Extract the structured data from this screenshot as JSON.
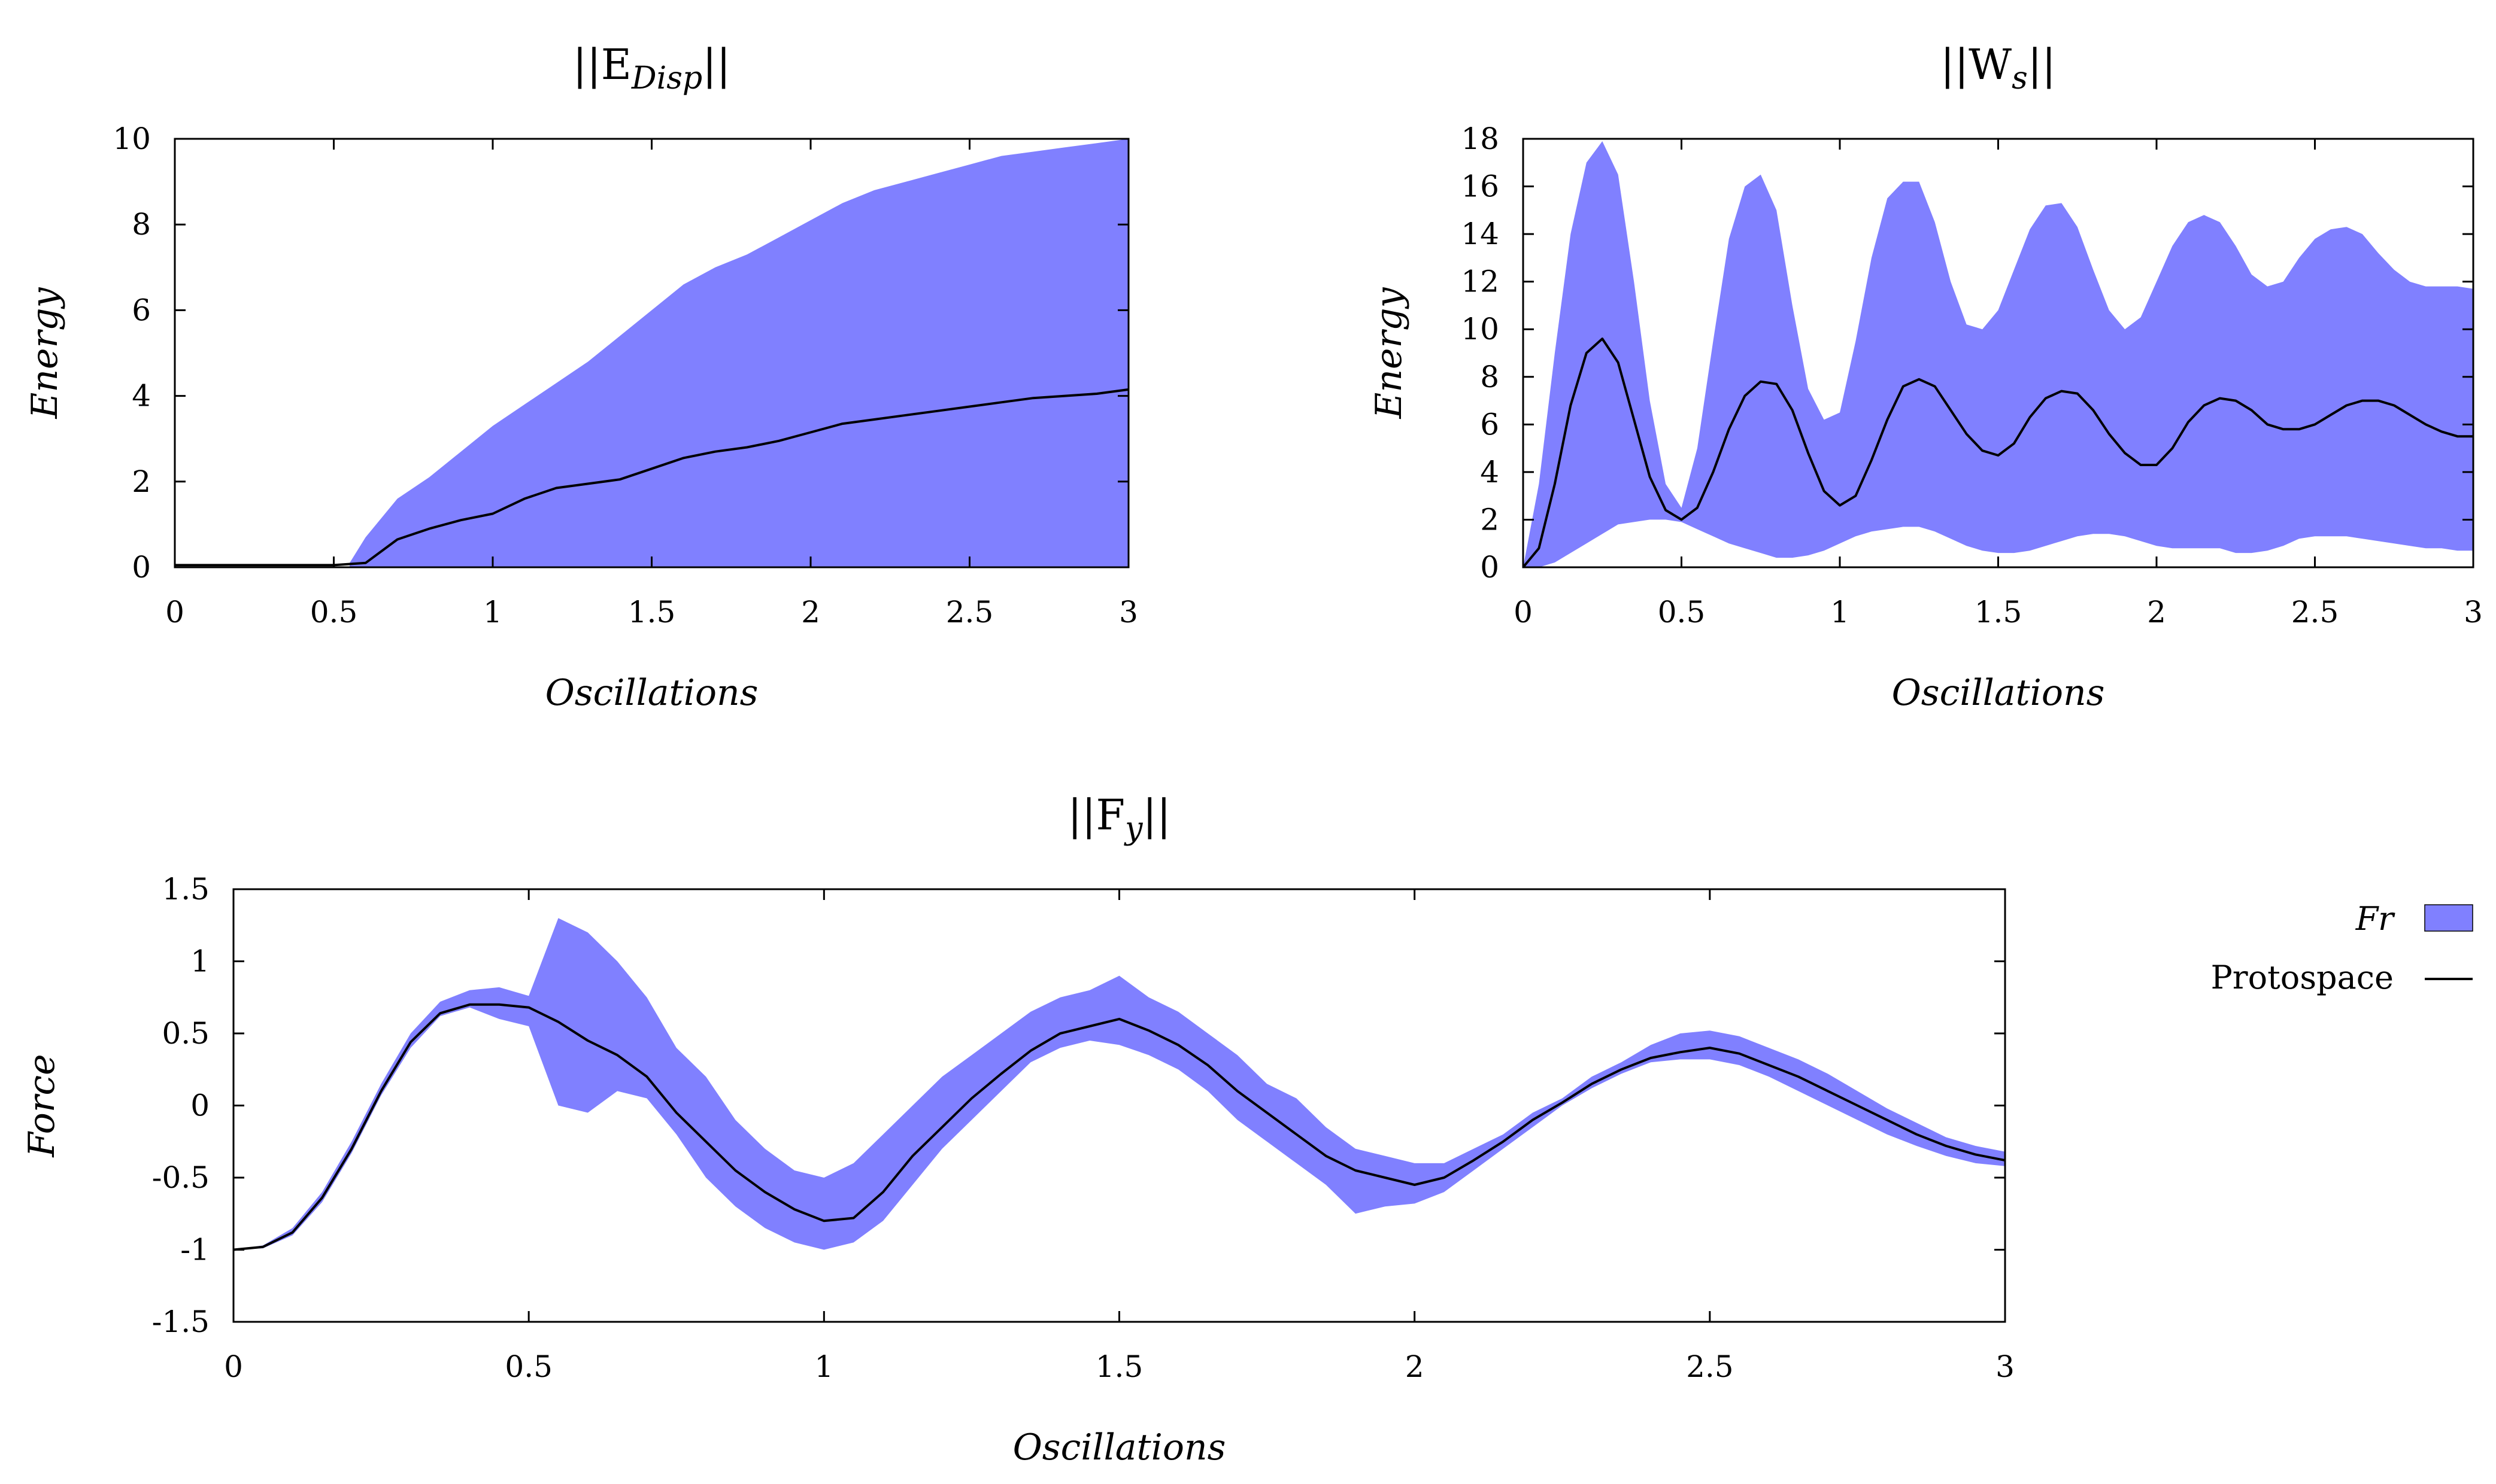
{
  "chart_data": [
    {
      "type": "area",
      "title": {
        "prefix": "||E",
        "sub": "Disp",
        "suffix": "||"
      },
      "xlabel": "Oscillations",
      "ylabel": "Energy",
      "xlim": [
        0,
        3
      ],
      "ylim": [
        0,
        10
      ],
      "xticks": [
        0,
        0.5,
        1,
        1.5,
        2,
        2.5,
        3
      ],
      "yticks": [
        0,
        2,
        4,
        6,
        8,
        10
      ],
      "xtick_labels": [
        "0",
        "0.5",
        "1",
        "1.5",
        "2",
        "2.5",
        "3"
      ],
      "ytick_labels": [
        "0",
        "2",
        "4",
        "6",
        "8",
        "10"
      ],
      "series": [
        {
          "name": "Fr",
          "kind": "band",
          "color": "#8080ff",
          "x": [
            0.55,
            0.6,
            0.7,
            0.8,
            0.9,
            1.0,
            1.1,
            1.2,
            1.3,
            1.4,
            1.5,
            1.6,
            1.7,
            1.8,
            1.9,
            2.0,
            2.1,
            2.2,
            2.3,
            2.4,
            2.5,
            2.6,
            2.7,
            2.8,
            2.9,
            3.0
          ],
          "upper": [
            0.1,
            0.7,
            1.6,
            2.1,
            2.7,
            3.3,
            3.8,
            4.3,
            4.8,
            5.4,
            6.0,
            6.6,
            7.0,
            7.3,
            7.7,
            8.1,
            8.5,
            8.8,
            9.0,
            9.2,
            9.4,
            9.6,
            9.7,
            9.8,
            9.9,
            10.0
          ],
          "lower": [
            0.0,
            0.0,
            0.0,
            0.0,
            0.0,
            0.0,
            0.0,
            0.0,
            0.0,
            0.0,
            0.0,
            0.0,
            0.0,
            0.0,
            0.0,
            0.0,
            0.0,
            0.0,
            0.0,
            0.0,
            0.0,
            0.0,
            0.0,
            0.0,
            0.0,
            0.0
          ]
        },
        {
          "name": "Protospace",
          "kind": "line",
          "color": "#000000",
          "x": [
            0,
            0.5,
            0.6,
            0.7,
            0.8,
            0.9,
            1.0,
            1.1,
            1.2,
            1.3,
            1.4,
            1.5,
            1.6,
            1.7,
            1.8,
            1.9,
            2.0,
            2.1,
            2.2,
            2.3,
            2.4,
            2.5,
            2.6,
            2.7,
            2.8,
            2.9,
            3.0
          ],
          "y": [
            0.05,
            0.05,
            0.1,
            0.65,
            0.9,
            1.1,
            1.25,
            1.6,
            1.85,
            1.95,
            2.05,
            2.3,
            2.55,
            2.7,
            2.8,
            2.95,
            3.15,
            3.35,
            3.45,
            3.55,
            3.65,
            3.75,
            3.85,
            3.95,
            4.0,
            4.05,
            4.15
          ]
        }
      ]
    },
    {
      "type": "area",
      "title": {
        "prefix": "||W",
        "sub": "s",
        "suffix": "||"
      },
      "xlabel": "Oscillations",
      "ylabel": "Energy",
      "xlim": [
        0,
        3
      ],
      "ylim": [
        0,
        18
      ],
      "xticks": [
        0,
        0.5,
        1,
        1.5,
        2,
        2.5,
        3
      ],
      "yticks": [
        0,
        2,
        4,
        6,
        8,
        10,
        12,
        14,
        16,
        18
      ],
      "xtick_labels": [
        "0",
        "0.5",
        "1",
        "1.5",
        "2",
        "2.5",
        "3"
      ],
      "ytick_labels": [
        "0",
        "2",
        "4",
        "6",
        "8",
        "10",
        "12",
        "14",
        "16",
        "18"
      ],
      "series": [
        {
          "name": "Fr",
          "kind": "band",
          "color": "#8080ff",
          "x": [
            0,
            0.05,
            0.1,
            0.15,
            0.2,
            0.25,
            0.3,
            0.35,
            0.4,
            0.45,
            0.5,
            0.55,
            0.6,
            0.65,
            0.7,
            0.75,
            0.8,
            0.85,
            0.9,
            0.95,
            1.0,
            1.05,
            1.1,
            1.15,
            1.2,
            1.25,
            1.3,
            1.35,
            1.4,
            1.45,
            1.5,
            1.55,
            1.6,
            1.65,
            1.7,
            1.75,
            1.8,
            1.85,
            1.9,
            1.95,
            2.0,
            2.05,
            2.1,
            2.15,
            2.2,
            2.25,
            2.3,
            2.35,
            2.4,
            2.45,
            2.5,
            2.55,
            2.6,
            2.65,
            2.7,
            2.75,
            2.8,
            2.85,
            2.9,
            2.95,
            3.0
          ],
          "upper": [
            0.0,
            3.5,
            9.0,
            14.0,
            17.0,
            17.9,
            16.5,
            12.0,
            7.0,
            3.5,
            2.5,
            5.0,
            9.5,
            13.8,
            16.0,
            16.5,
            15.0,
            11.0,
            7.5,
            6.2,
            6.5,
            9.5,
            13.0,
            15.5,
            16.2,
            16.2,
            14.5,
            12.0,
            10.2,
            10.0,
            10.8,
            12.5,
            14.2,
            15.2,
            15.3,
            14.3,
            12.5,
            10.8,
            10.0,
            10.5,
            12.0,
            13.5,
            14.5,
            14.8,
            14.5,
            13.5,
            12.3,
            11.8,
            12.0,
            13.0,
            13.8,
            14.2,
            14.3,
            14.0,
            13.2,
            12.5,
            12.0,
            11.8,
            11.8,
            11.8,
            11.7
          ],
          "lower": [
            0.0,
            0.0,
            0.2,
            0.6,
            1.0,
            1.4,
            1.8,
            1.9,
            2.0,
            2.0,
            1.9,
            1.6,
            1.3,
            1.0,
            0.8,
            0.6,
            0.4,
            0.4,
            0.5,
            0.7,
            1.0,
            1.3,
            1.5,
            1.6,
            1.7,
            1.7,
            1.5,
            1.2,
            0.9,
            0.7,
            0.6,
            0.6,
            0.7,
            0.9,
            1.1,
            1.3,
            1.4,
            1.4,
            1.3,
            1.1,
            0.9,
            0.8,
            0.8,
            0.8,
            0.8,
            0.6,
            0.6,
            0.7,
            0.9,
            1.2,
            1.3,
            1.3,
            1.3,
            1.2,
            1.1,
            1.0,
            0.9,
            0.8,
            0.8,
            0.7,
            0.7
          ]
        },
        {
          "name": "Protospace",
          "kind": "line",
          "color": "#000000",
          "x": [
            0,
            0.05,
            0.1,
            0.15,
            0.2,
            0.25,
            0.3,
            0.35,
            0.4,
            0.45,
            0.5,
            0.55,
            0.6,
            0.65,
            0.7,
            0.75,
            0.8,
            0.85,
            0.9,
            0.95,
            1.0,
            1.05,
            1.1,
            1.15,
            1.2,
            1.25,
            1.3,
            1.35,
            1.4,
            1.45,
            1.5,
            1.55,
            1.6,
            1.65,
            1.7,
            1.75,
            1.8,
            1.85,
            1.9,
            1.95,
            2.0,
            2.05,
            2.1,
            2.15,
            2.2,
            2.25,
            2.3,
            2.35,
            2.4,
            2.45,
            2.5,
            2.55,
            2.6,
            2.65,
            2.7,
            2.75,
            2.8,
            2.85,
            2.9,
            2.95,
            3.0
          ],
          "y": [
            0.0,
            0.8,
            3.5,
            6.8,
            9.0,
            9.6,
            8.6,
            6.2,
            3.8,
            2.4,
            2.0,
            2.5,
            4.0,
            5.8,
            7.2,
            7.8,
            7.7,
            6.6,
            4.8,
            3.2,
            2.6,
            3.0,
            4.5,
            6.2,
            7.6,
            7.9,
            7.6,
            6.6,
            5.6,
            4.9,
            4.7,
            5.2,
            6.3,
            7.1,
            7.4,
            7.3,
            6.6,
            5.6,
            4.8,
            4.3,
            4.3,
            5.0,
            6.1,
            6.8,
            7.1,
            7.0,
            6.6,
            6.0,
            5.8,
            5.8,
            6.0,
            6.4,
            6.8,
            7.0,
            7.0,
            6.8,
            6.4,
            6.0,
            5.7,
            5.5,
            5.5
          ]
        }
      ]
    },
    {
      "type": "area",
      "title": {
        "prefix": "||F",
        "sub": "y",
        "suffix": "||"
      },
      "xlabel": "Oscillations",
      "ylabel": "Force",
      "xlim": [
        0,
        3
      ],
      "ylim": [
        -1.5,
        1.5
      ],
      "xticks": [
        0,
        0.5,
        1,
        1.5,
        2,
        2.5,
        3
      ],
      "yticks": [
        -1.5,
        -1,
        -0.5,
        0,
        0.5,
        1,
        1.5
      ],
      "xtick_labels": [
        "0",
        "0.5",
        "1",
        "1.5",
        "2",
        "2.5",
        "3"
      ],
      "ytick_labels": [
        "-1.5",
        "-1",
        "-0.5",
        "0",
        "0.5",
        "1",
        "1.5"
      ],
      "series": [
        {
          "name": "Fr",
          "kind": "band",
          "color": "#8080ff",
          "x": [
            0,
            0.05,
            0.1,
            0.15,
            0.2,
            0.25,
            0.3,
            0.35,
            0.4,
            0.45,
            0.5,
            0.55,
            0.6,
            0.65,
            0.7,
            0.75,
            0.8,
            0.85,
            0.9,
            0.95,
            1.0,
            1.05,
            1.1,
            1.15,
            1.2,
            1.25,
            1.3,
            1.35,
            1.4,
            1.45,
            1.5,
            1.55,
            1.6,
            1.65,
            1.7,
            1.75,
            1.8,
            1.85,
            1.9,
            1.95,
            2.0,
            2.05,
            2.1,
            2.15,
            2.2,
            2.25,
            2.3,
            2.35,
            2.4,
            2.45,
            2.5,
            2.55,
            2.6,
            2.65,
            2.7,
            2.75,
            2.8,
            2.85,
            2.9,
            2.95,
            3.0
          ],
          "upper": [
            -1.0,
            -0.97,
            -0.85,
            -0.6,
            -0.25,
            0.15,
            0.5,
            0.72,
            0.8,
            0.82,
            0.76,
            1.3,
            1.2,
            1.0,
            0.75,
            0.4,
            0.2,
            -0.1,
            -0.3,
            -0.45,
            -0.5,
            -0.4,
            -0.2,
            0.0,
            0.2,
            0.35,
            0.5,
            0.65,
            0.75,
            0.8,
            0.9,
            0.75,
            0.65,
            0.5,
            0.35,
            0.15,
            0.05,
            -0.15,
            -0.3,
            -0.35,
            -0.4,
            -0.4,
            -0.3,
            -0.2,
            -0.05,
            0.05,
            0.2,
            0.3,
            0.42,
            0.5,
            0.52,
            0.48,
            0.4,
            0.32,
            0.22,
            0.1,
            -0.02,
            -0.12,
            -0.22,
            -0.28,
            -0.32
          ],
          "lower": [
            -1.0,
            -0.99,
            -0.9,
            -0.67,
            -0.33,
            0.07,
            0.4,
            0.62,
            0.68,
            0.6,
            0.55,
            0.0,
            -0.05,
            0.1,
            0.05,
            -0.2,
            -0.5,
            -0.7,
            -0.85,
            -0.95,
            -1.0,
            -0.95,
            -0.8,
            -0.55,
            -0.3,
            -0.1,
            0.1,
            0.3,
            0.4,
            0.45,
            0.42,
            0.35,
            0.25,
            0.1,
            -0.1,
            -0.25,
            -0.4,
            -0.55,
            -0.75,
            -0.7,
            -0.68,
            -0.6,
            -0.45,
            -0.3,
            -0.15,
            0.0,
            0.12,
            0.22,
            0.3,
            0.32,
            0.32,
            0.28,
            0.2,
            0.1,
            0.0,
            -0.1,
            -0.2,
            -0.28,
            -0.35,
            -0.4,
            -0.42
          ]
        },
        {
          "name": "Protospace",
          "kind": "line",
          "color": "#000000",
          "x": [
            0,
            0.05,
            0.1,
            0.15,
            0.2,
            0.25,
            0.3,
            0.35,
            0.4,
            0.45,
            0.5,
            0.55,
            0.6,
            0.65,
            0.7,
            0.75,
            0.8,
            0.85,
            0.9,
            0.95,
            1.0,
            1.05,
            1.1,
            1.15,
            1.2,
            1.25,
            1.3,
            1.35,
            1.4,
            1.45,
            1.5,
            1.55,
            1.6,
            1.65,
            1.7,
            1.75,
            1.8,
            1.85,
            1.9,
            1.95,
            2.0,
            2.05,
            2.1,
            2.15,
            2.2,
            2.25,
            2.3,
            2.35,
            2.4,
            2.45,
            2.5,
            2.55,
            2.6,
            2.65,
            2.7,
            2.75,
            2.8,
            2.85,
            2.9,
            2.95,
            3.0
          ],
          "y": [
            -1.0,
            -0.98,
            -0.88,
            -0.64,
            -0.3,
            0.1,
            0.44,
            0.64,
            0.7,
            0.7,
            0.68,
            0.58,
            0.45,
            0.35,
            0.2,
            -0.05,
            -0.25,
            -0.45,
            -0.6,
            -0.72,
            -0.8,
            -0.78,
            -0.6,
            -0.35,
            -0.15,
            0.05,
            0.22,
            0.38,
            0.5,
            0.55,
            0.6,
            0.52,
            0.42,
            0.28,
            0.1,
            -0.05,
            -0.2,
            -0.35,
            -0.45,
            -0.5,
            -0.55,
            -0.5,
            -0.38,
            -0.25,
            -0.1,
            0.02,
            0.15,
            0.25,
            0.33,
            0.37,
            0.4,
            0.36,
            0.28,
            0.2,
            0.1,
            0.0,
            -0.1,
            -0.2,
            -0.28,
            -0.34,
            -0.38
          ]
        }
      ]
    }
  ],
  "legend": {
    "items": [
      {
        "label": "Fr",
        "italic": true,
        "kind": "band",
        "color": "#8080ff"
      },
      {
        "label": "Protospace",
        "italic": false,
        "kind": "line",
        "color": "#000000"
      }
    ]
  }
}
